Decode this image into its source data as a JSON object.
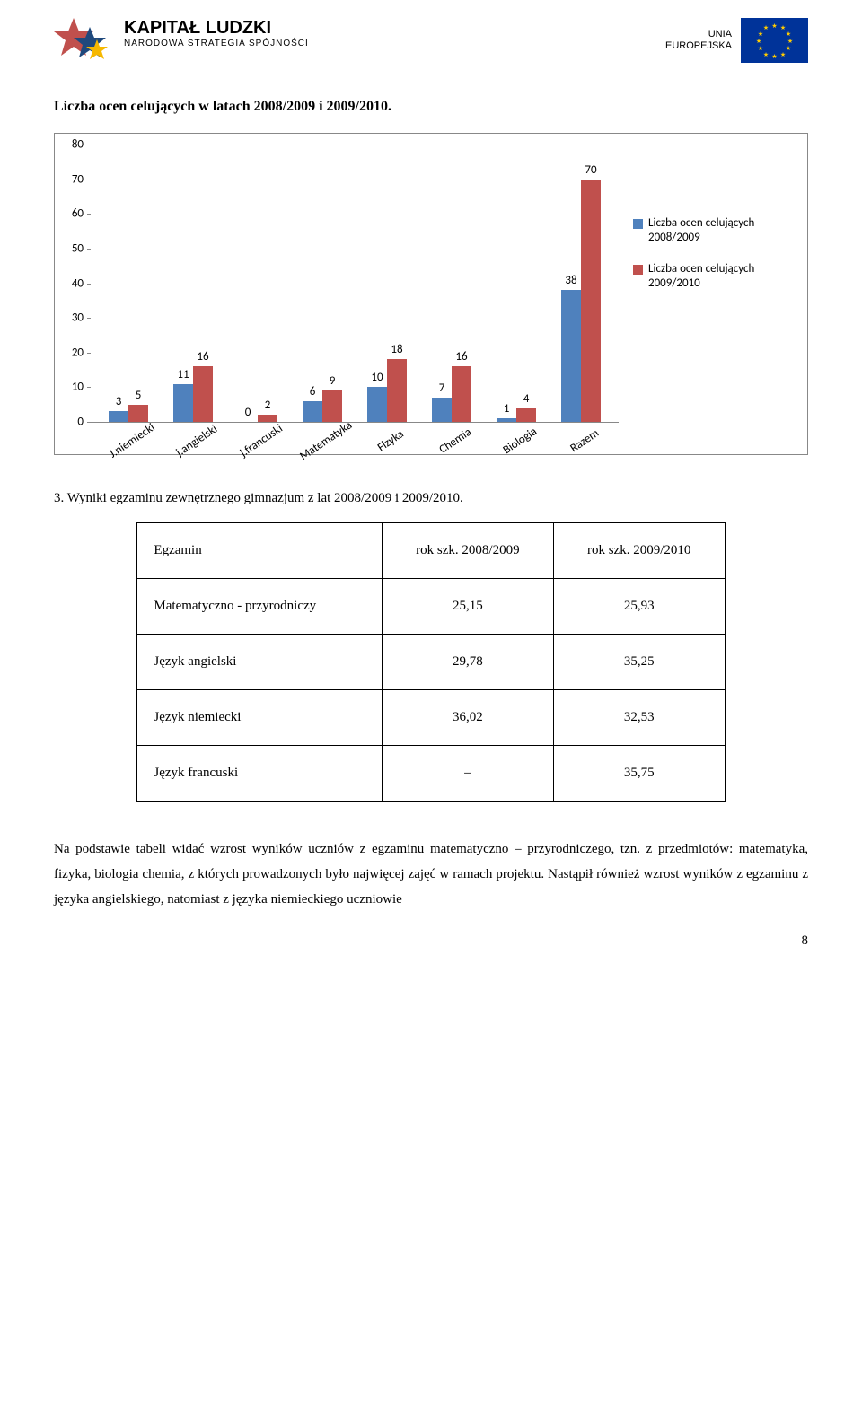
{
  "header": {
    "logo_title": "KAPITAŁ LUDZKI",
    "logo_subtitle": "NARODOWA STRATEGIA SPÓJNOŚCI",
    "eu_line1": "UNIA",
    "eu_line2": "EUROPEJSKA"
  },
  "chart": {
    "title": "Liczba ocen celujących w latach 2008/2009 i 2009/2010.",
    "type": "bar",
    "categories": [
      "J.niemiecki",
      "j.angielski",
      "j.francuski",
      "Matematyka",
      "Fizyka",
      "Chemia",
      "Biologia",
      "Razem"
    ],
    "series": [
      {
        "name": "Liczba ocen celujących 2008/2009",
        "color": "#4f81bd",
        "values": [
          3,
          11,
          0,
          6,
          10,
          7,
          1,
          38
        ]
      },
      {
        "name": "Liczba ocen celujących 2009/2010",
        "color": "#c0504d",
        "values": [
          5,
          16,
          2,
          9,
          18,
          16,
          4,
          70
        ]
      }
    ],
    "y_ticks": [
      0,
      10,
      20,
      30,
      40,
      50,
      60,
      70,
      80
    ],
    "y_max": 80,
    "bg": "#ffffff",
    "border": "#888888",
    "font_size": 13
  },
  "section_heading": "3. Wyniki egzaminu zewnętrznego gimnazjum z lat 2008/2009 i 2009/2010.",
  "table": {
    "rows": [
      [
        "Egzamin",
        "rok szk.   2008/2009",
        "rok szk.   2009/2010"
      ],
      [
        "Matematyczno - przyrodniczy",
        "25,15",
        "25,93"
      ],
      [
        "Język angielski",
        "29,78",
        "35,25"
      ],
      [
        "Język niemiecki",
        "36,02",
        "32,53"
      ],
      [
        "Język francuski",
        "–",
        "35,75"
      ]
    ]
  },
  "paragraph": "Na podstawie tabeli widać wzrost wyników uczniów z egzaminu matematyczno – przyrodniczego, tzn. z przedmiotów: matematyka, fizyka, biologia chemia, z których prowadzonych było najwięcej zajęć w ramach projektu. Nastąpił również wzrost wyników z egzaminu z języka angielskiego, natomiast z języka niemieckiego uczniowie",
  "page_num": "8"
}
